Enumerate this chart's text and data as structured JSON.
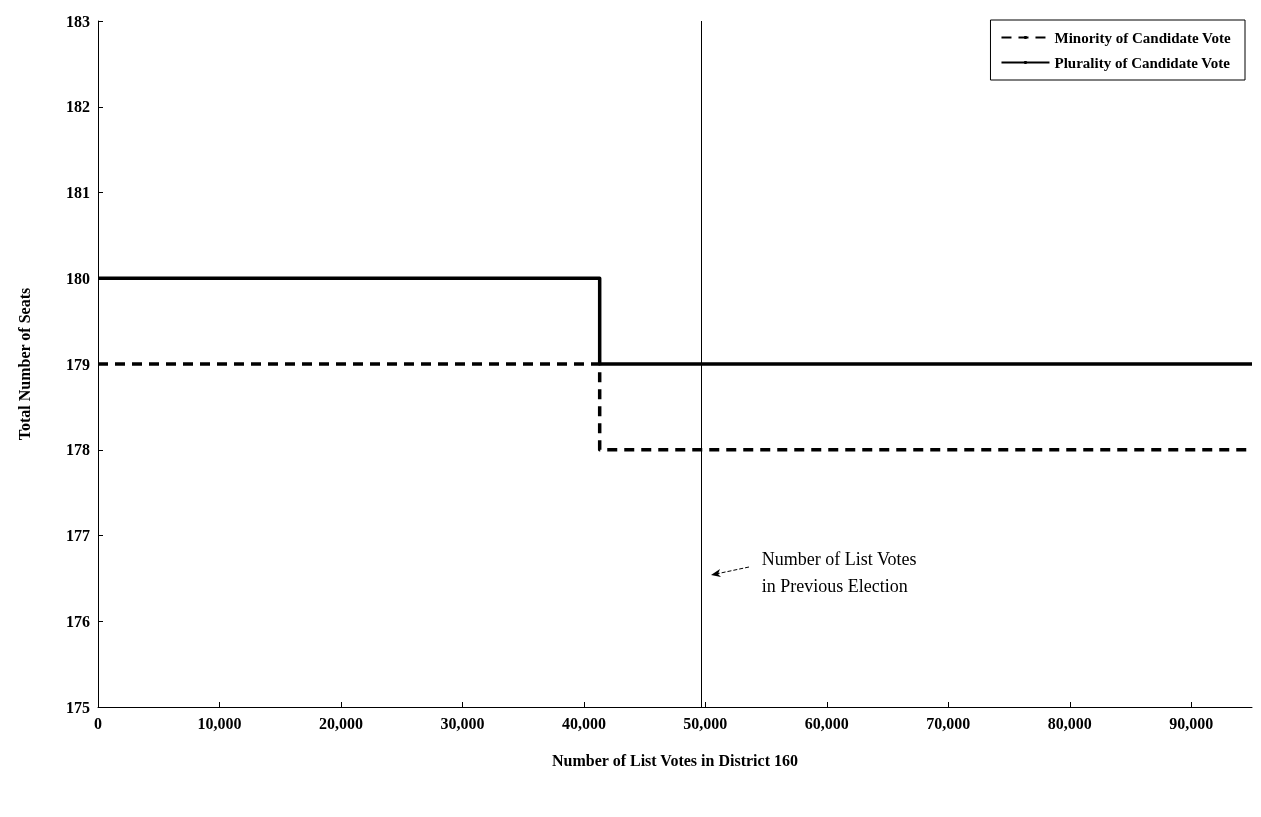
{
  "chart_data": {
    "type": "step",
    "xlabel": "Number of List Votes in District 160",
    "ylabel": "Total Number of Seats",
    "series": [
      {
        "name": "Minority of Candidate Vote",
        "color": "#000000",
        "line_style": "dashed",
        "x": [
          0,
          41300,
          95000
        ],
        "values": [
          179,
          178,
          178
        ]
      },
      {
        "name": "Plurality of Candidate Vote",
        "color": "#000000",
        "line_style": "solid",
        "x": [
          0,
          41300,
          95000
        ],
        "values": [
          180,
          179,
          179
        ]
      }
    ],
    "xlim": [
      0,
      95000
    ],
    "xticks": [
      0,
      {
        "value": 10000,
        "label": "10,000"
      },
      {
        "value": 20000,
        "label": "20,000"
      },
      {
        "value": 30000,
        "label": "30,000"
      },
      {
        "value": 40000,
        "label": "40,000"
      },
      {
        "value": 50000,
        "label": "50,000"
      },
      {
        "value": 60000,
        "label": "60,000"
      },
      {
        "value": 70000,
        "label": "70,000"
      },
      {
        "value": 80000,
        "label": "80,000"
      },
      {
        "value": 90000,
        "label": "90,000"
      }
    ],
    "ylim": [
      175,
      183
    ],
    "yticks": [
      175,
      176,
      177,
      178,
      179,
      180,
      181,
      182,
      183
    ],
    "ref_lines": [
      {
        "axis": "x",
        "value": 49700,
        "color": "#000000",
        "line_style": "solid"
      }
    ],
    "annotations": [
      "Number of List Votes\nin Previous Election"
    ],
    "legend": "top right",
    "grid": false,
    "marker": "none"
  }
}
